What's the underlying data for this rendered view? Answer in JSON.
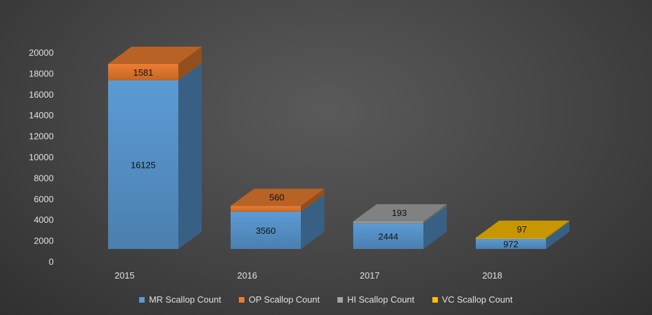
{
  "chart_data": {
    "type": "bar",
    "stacked": true,
    "style": "3d-column",
    "categories": [
      "2015",
      "2016",
      "2017",
      "2018"
    ],
    "ylim": [
      0,
      20000
    ],
    "yticks": [
      0,
      2000,
      4000,
      6000,
      8000,
      10000,
      12000,
      14000,
      16000,
      18000,
      20000
    ],
    "ytick_labels": [
      "0",
      "2000",
      "4000",
      "6000",
      "8000",
      "10000",
      "12000",
      "14000",
      "16000",
      "18000",
      "20000"
    ],
    "legend_position": "bottom",
    "series": [
      {
        "name": "MR Scallop Count",
        "color": "#5b9bd5",
        "values": [
          16125,
          3560,
          2444,
          972
        ],
        "labels": [
          "16125",
          "3560",
          "2444",
          "972"
        ]
      },
      {
        "name": "OP Scallop Count",
        "color": "#ed7d31",
        "values": [
          1581,
          560,
          0,
          0
        ],
        "labels": [
          "1581",
          "560",
          "",
          ""
        ]
      },
      {
        "name": "HI Scallop Count",
        "color": "#a5a5a5",
        "values": [
          0,
          0,
          193,
          0
        ],
        "labels": [
          "",
          "",
          "193",
          ""
        ]
      },
      {
        "name": "VC Scallop Count",
        "color": "#ffc000",
        "values": [
          0,
          0,
          0,
          97
        ],
        "labels": [
          "",
          "",
          "",
          "97"
        ]
      }
    ]
  }
}
